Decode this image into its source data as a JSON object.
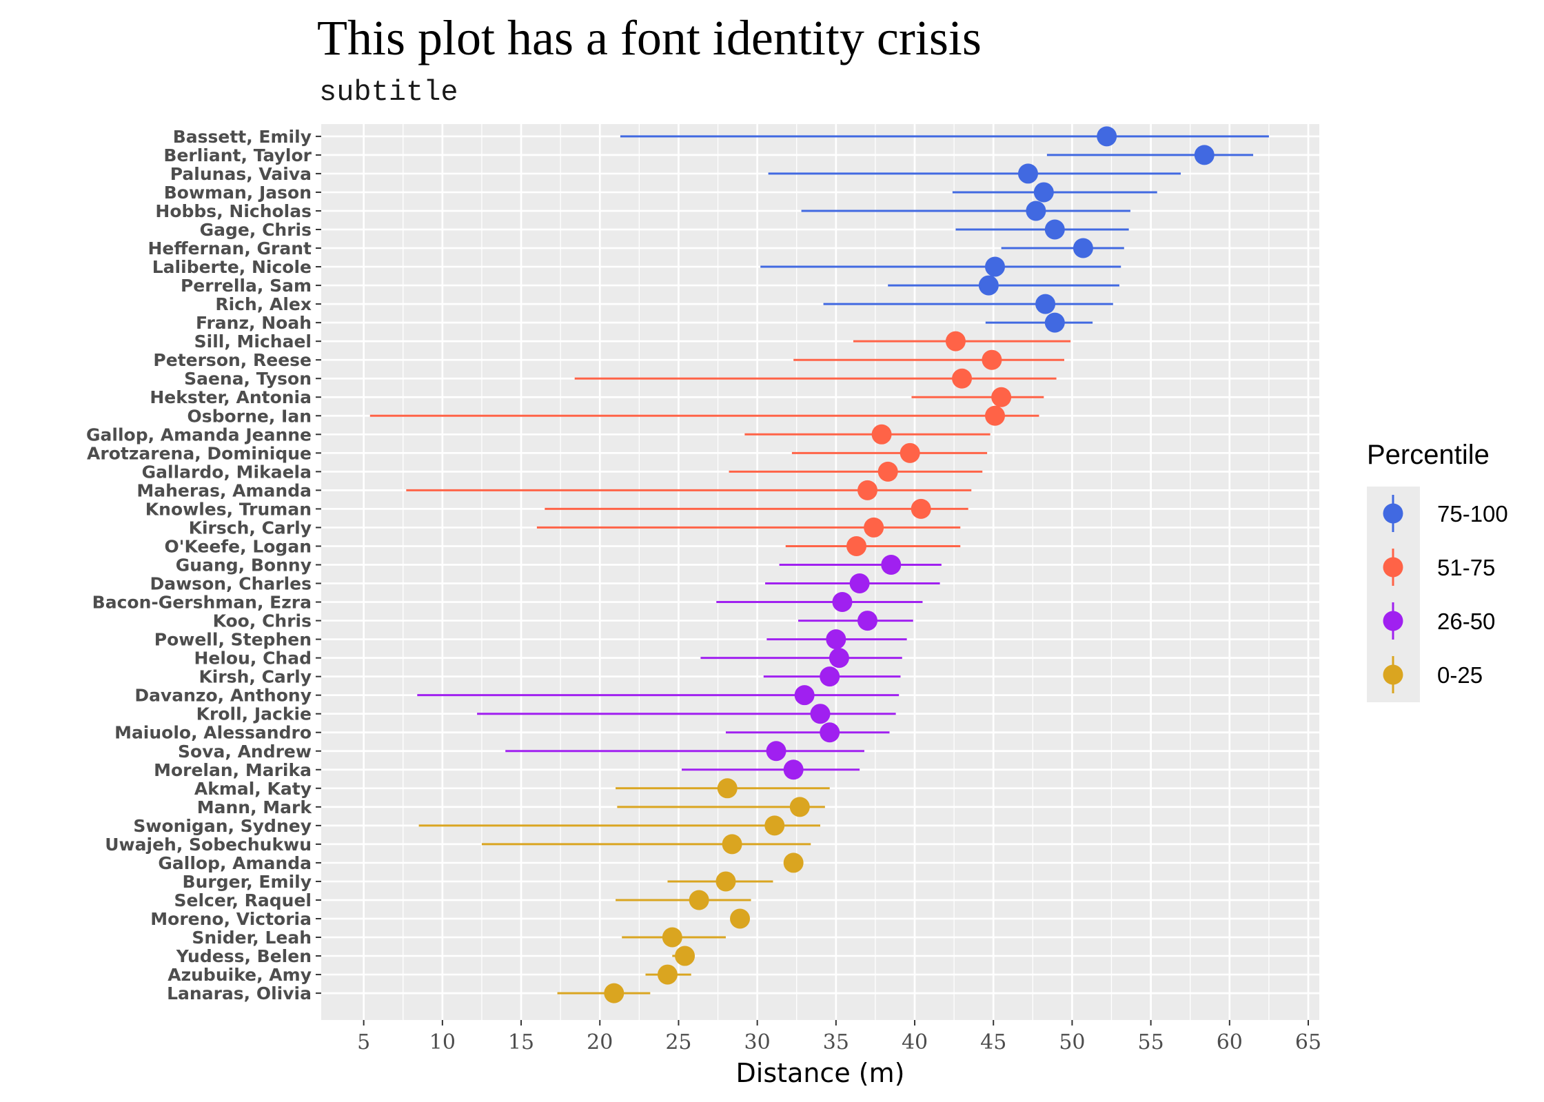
{
  "chart_data": {
    "type": "scatter",
    "title": "This plot has a font identity crisis",
    "subtitle": "subtitle",
    "xlabel": "Distance (m)",
    "ylabel": "",
    "xlim": [
      2.3,
      65.7
    ],
    "x_ticks": [
      5,
      10,
      15,
      20,
      25,
      30,
      35,
      40,
      45,
      50,
      55,
      60,
      65
    ],
    "grid": true,
    "legend_title": "Percentile",
    "legend_position": "right",
    "series": [
      {
        "name": "75-100",
        "color": "#4169E1",
        "points": [
          {
            "label": "Bassett, Emily",
            "x": 52.2,
            "min": 21.3,
            "max": 62.5
          },
          {
            "label": "Berliant, Taylor",
            "x": 58.4,
            "min": 48.4,
            "max": 61.5
          },
          {
            "label": "Palunas, Vaiva",
            "x": 47.2,
            "min": 30.7,
            "max": 56.9
          },
          {
            "label": "Bowman, Jason",
            "x": 48.2,
            "min": 42.4,
            "max": 55.4
          },
          {
            "label": "Hobbs, Nicholas",
            "x": 47.7,
            "min": 32.8,
            "max": 53.7
          },
          {
            "label": "Gage, Chris",
            "x": 48.9,
            "min": 42.6,
            "max": 53.6
          },
          {
            "label": "Heffernan, Grant",
            "x": 50.7,
            "min": 45.5,
            "max": 53.3
          },
          {
            "label": "Laliberte, Nicole",
            "x": 45.1,
            "min": 30.2,
            "max": 53.1
          },
          {
            "label": "Perrella, Sam",
            "x": 44.7,
            "min": 38.3,
            "max": 53.0
          },
          {
            "label": "Rich, Alex",
            "x": 48.3,
            "min": 34.2,
            "max": 52.6
          },
          {
            "label": "Franz, Noah",
            "x": 48.9,
            "min": 44.5,
            "max": 51.3
          }
        ]
      },
      {
        "name": "51-75",
        "color": "#FF6347",
        "points": [
          {
            "label": "Sill, Michael",
            "x": 42.6,
            "min": 36.1,
            "max": 49.9
          },
          {
            "label": "Peterson, Reese",
            "x": 44.9,
            "min": 32.3,
            "max": 49.5
          },
          {
            "label": "Saena, Tyson",
            "x": 43.0,
            "min": 18.4,
            "max": 49.0
          },
          {
            "label": "Hekster, Antonia",
            "x": 45.5,
            "min": 39.8,
            "max": 48.2
          },
          {
            "label": "Osborne, Ian",
            "x": 45.1,
            "min": 5.4,
            "max": 47.9
          },
          {
            "label": "Gallop, Amanda Jeanne",
            "x": 37.9,
            "min": 29.2,
            "max": 44.8
          },
          {
            "label": "Arotzarena, Dominique",
            "x": 39.7,
            "min": 32.2,
            "max": 44.6
          },
          {
            "label": "Gallardo, Mikaela",
            "x": 38.3,
            "min": 28.2,
            "max": 44.3
          },
          {
            "label": "Maheras, Amanda",
            "x": 37.0,
            "min": 7.7,
            "max": 43.6
          },
          {
            "label": "Knowles, Truman",
            "x": 40.4,
            "min": 16.5,
            "max": 43.4
          },
          {
            "label": "Kirsch, Carly",
            "x": 37.4,
            "min": 16.0,
            "max": 42.9
          },
          {
            "label": "O'Keefe, Logan",
            "x": 36.3,
            "min": 31.8,
            "max": 42.9
          }
        ]
      },
      {
        "name": "26-50",
        "color": "#A020F0",
        "points": [
          {
            "label": "Guang, Bonny",
            "x": 38.5,
            "min": 31.4,
            "max": 41.7
          },
          {
            "label": "Dawson, Charles",
            "x": 36.5,
            "min": 30.5,
            "max": 41.6
          },
          {
            "label": "Bacon-Gershman, Ezra",
            "x": 35.4,
            "min": 27.4,
            "max": 40.5
          },
          {
            "label": "Koo, Chris",
            "x": 37.0,
            "min": 32.6,
            "max": 39.9
          },
          {
            "label": "Powell, Stephen",
            "x": 35.0,
            "min": 30.6,
            "max": 39.5
          },
          {
            "label": "Helou, Chad",
            "x": 35.2,
            "min": 26.4,
            "max": 39.2
          },
          {
            "label": "Kirsh, Carly",
            "x": 34.6,
            "min": 30.4,
            "max": 39.1
          },
          {
            "label": "Davanzo, Anthony",
            "x": 33.0,
            "min": 8.4,
            "max": 39.0
          },
          {
            "label": "Kroll, Jackie",
            "x": 34.0,
            "min": 12.2,
            "max": 38.8
          },
          {
            "label": "Maiuolo, Alessandro",
            "x": 34.6,
            "min": 28.0,
            "max": 38.4
          },
          {
            "label": "Sova, Andrew",
            "x": 31.2,
            "min": 14.0,
            "max": 36.8
          },
          {
            "label": "Morelan, Marika",
            "x": 32.3,
            "min": 25.2,
            "max": 36.5
          }
        ]
      },
      {
        "name": "0-25",
        "color": "#DAA520",
        "points": [
          {
            "label": "Akmal, Katy",
            "x": 28.1,
            "min": 21.0,
            "max": 34.6
          },
          {
            "label": "Mann, Mark",
            "x": 32.7,
            "min": 21.1,
            "max": 34.3
          },
          {
            "label": "Swonigan, Sydney",
            "x": 31.1,
            "min": 8.5,
            "max": 34.0
          },
          {
            "label": "Uwajeh, Sobechukwu",
            "x": 28.4,
            "min": 12.5,
            "max": 33.4
          },
          {
            "label": "Gallop, Amanda",
            "x": 32.3,
            "min": null,
            "max": null
          },
          {
            "label": "Burger, Emily",
            "x": 28.0,
            "min": 24.3,
            "max": 31.0
          },
          {
            "label": "Selcer, Raquel",
            "x": 26.3,
            "min": 21.0,
            "max": 29.6
          },
          {
            "label": "Moreno, Victoria",
            "x": 28.9,
            "min": null,
            "max": null
          },
          {
            "label": "Snider, Leah",
            "x": 24.6,
            "min": 21.4,
            "max": 28.0
          },
          {
            "label": "Yudess, Belen",
            "x": 25.4,
            "min": 24.6,
            "max": 25.4
          },
          {
            "label": "Azubuike, Amy",
            "x": 24.3,
            "min": 22.9,
            "max": 25.8
          },
          {
            "label": "Lanaras, Olivia",
            "x": 20.9,
            "min": 17.3,
            "max": 23.2
          }
        ]
      }
    ]
  }
}
